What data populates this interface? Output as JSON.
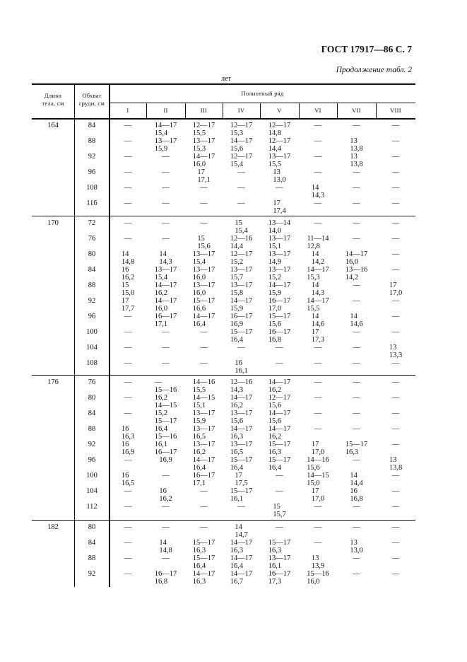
{
  "page_header": "ГОСТ 17917—86 С. 7",
  "continuation": "Продолжение табл. 2",
  "unit_note": "лет",
  "table": {
    "col_length": "Длина тела, см",
    "col_length_lines": [
      "Длина",
      "тела, см"
    ],
    "col_chest_lines": [
      "Обхват",
      "груди, см"
    ],
    "group_header": "Полнотный ряд",
    "roman": [
      "I",
      "II",
      "III",
      "IV",
      "V",
      "VI",
      "VII",
      "VIII"
    ],
    "groups": [
      {
        "length": "164",
        "rows": [
          {
            "chest": "84",
            "cells": [
              [
                "—"
              ],
              [
                "14—17",
                "15,4"
              ],
              [
                "12—17",
                "15,5"
              ],
              [
                "12—17",
                "15,3"
              ],
              [
                "12—17",
                "14,8"
              ],
              [
                "—"
              ],
              [
                "—"
              ],
              [
                "—"
              ]
            ]
          },
          {
            "chest": "88",
            "cells": [
              [
                "—"
              ],
              [
                "13—17",
                "15,9"
              ],
              [
                "13—17",
                "15,3"
              ],
              [
                "14—17",
                "15,6"
              ],
              [
                "12—17",
                "14,4"
              ],
              [
                "—"
              ],
              [
                "13",
                "13,8"
              ],
              [
                "—"
              ]
            ]
          },
          {
            "chest": "92",
            "cells": [
              [
                "—"
              ],
              [
                "—"
              ],
              [
                "14—17",
                "16,0"
              ],
              [
                "12—17",
                "15,4"
              ],
              [
                "13—17",
                "15,5"
              ],
              [
                "—"
              ],
              [
                "13",
                "13,8"
              ],
              [
                "—"
              ]
            ]
          },
          {
            "chest": "96",
            "cells": [
              [
                "—"
              ],
              [
                "—"
              ],
              [
                "17",
                "17,1"
              ],
              [
                "—"
              ],
              [
                "13",
                "13,0"
              ],
              [
                "—"
              ],
              [
                "—"
              ],
              [
                "—"
              ]
            ]
          },
          {
            "chest": "108",
            "cells": [
              [
                "—"
              ],
              [
                "—"
              ],
              [
                "—"
              ],
              [
                "—"
              ],
              [
                "—"
              ],
              [
                "14",
                "14,3"
              ],
              [
                "—"
              ],
              [
                "—"
              ]
            ]
          },
          {
            "chest": "116",
            "cells": [
              [
                "—"
              ],
              [
                "—"
              ],
              [
                "—"
              ],
              [
                "—"
              ],
              [
                "17",
                "17,4"
              ],
              [
                "—"
              ],
              [
                "—"
              ],
              [
                "—"
              ]
            ]
          }
        ]
      },
      {
        "length": "170",
        "rows": [
          {
            "chest": "72",
            "cells": [
              [
                "—"
              ],
              [
                "—"
              ],
              [
                "—"
              ],
              [
                "15",
                "15,4"
              ],
              [
                "13—14",
                "14,0"
              ],
              [
                "—"
              ],
              [
                "—"
              ],
              [
                "—"
              ]
            ]
          },
          {
            "chest": "76",
            "cells": [
              [
                "—"
              ],
              [
                "—"
              ],
              [
                "15",
                "15,6"
              ],
              [
                "12—16",
                "14,4"
              ],
              [
                "13—17",
                "15,1"
              ],
              [
                "11—14",
                "12,8"
              ],
              [
                "—"
              ],
              [
                "—"
              ]
            ]
          },
          {
            "chest": "80",
            "cells": [
              [
                "14",
                "14,8"
              ],
              [
                "14",
                "14,3"
              ],
              [
                "13—17",
                "15,4"
              ],
              [
                "12—17",
                "15,2"
              ],
              [
                "13—17",
                "14,9"
              ],
              [
                "14",
                "14,2"
              ],
              [
                "14—17",
                "16,0"
              ],
              [
                "—"
              ]
            ]
          },
          {
            "chest": "84",
            "cells": [
              [
                "16",
                "16,2"
              ],
              [
                "13—17",
                "15,4"
              ],
              [
                "13—17",
                "16,0"
              ],
              [
                "13—17",
                "15,7"
              ],
              [
                "13—17",
                "15,2"
              ],
              [
                "14—17",
                "15,3"
              ],
              [
                "13—16",
                "14,2"
              ],
              [
                "—"
              ]
            ]
          },
          {
            "chest": "88",
            "cells": [
              [
                "15",
                "15,0"
              ],
              [
                "14—17",
                "16,2"
              ],
              [
                "13—17",
                "16,0"
              ],
              [
                "13—17",
                "15,8"
              ],
              [
                "14—17",
                "15,9"
              ],
              [
                "14",
                "14,3"
              ],
              [
                "—"
              ],
              [
                "17",
                "17,0"
              ]
            ]
          },
          {
            "chest": "92",
            "cells": [
              [
                "17",
                "17,7"
              ],
              [
                "14—17",
                "16,0"
              ],
              [
                "15—17",
                "16,6"
              ],
              [
                "14—17",
                "15,9"
              ],
              [
                "16—17",
                "17,0"
              ],
              [
                "14—17",
                "15,5"
              ],
              [
                "—"
              ],
              [
                "—"
              ]
            ]
          },
          {
            "chest": "96",
            "cells": [
              [
                "—"
              ],
              [
                "16—17",
                "17,1"
              ],
              [
                "14—17",
                "16,4"
              ],
              [
                "16—17",
                "16,9"
              ],
              [
                "15—17",
                "15,6"
              ],
              [
                "14",
                "14,6"
              ],
              [
                "14",
                "14,6"
              ],
              [
                "—"
              ]
            ]
          },
          {
            "chest": "100",
            "cells": [
              [
                "—"
              ],
              [
                "—"
              ],
              [
                "—"
              ],
              [
                "15—17",
                "16,4"
              ],
              [
                "16—17",
                "16,8"
              ],
              [
                "17",
                "17,3"
              ],
              [
                "—"
              ],
              [
                "—"
              ]
            ]
          },
          {
            "chest": "104",
            "cells": [
              [
                "—"
              ],
              [
                "—"
              ],
              [
                "—"
              ],
              [
                "—"
              ],
              [
                "—"
              ],
              [
                "—"
              ],
              [
                "—"
              ],
              [
                "13",
                "13,3"
              ]
            ]
          },
          {
            "chest": "108",
            "cells": [
              [
                "—"
              ],
              [
                "—"
              ],
              [
                "—"
              ],
              [
                "16",
                "16,1"
              ],
              [
                "—"
              ],
              [
                "—"
              ],
              [
                "—"
              ],
              [
                "—"
              ]
            ]
          }
        ]
      },
      {
        "length": "176",
        "rows": [
          {
            "chest": "76",
            "cells": [
              [
                "—"
              ],
              [
                "—",
                "15—16"
              ],
              [
                "14—16",
                "15,5"
              ],
              [
                "12—16",
                "14,3"
              ],
              [
                "14—17",
                "16,2"
              ],
              [
                "—"
              ],
              [
                "—"
              ],
              [
                "—"
              ]
            ]
          },
          {
            "chest": "80",
            "cells": [
              [
                "—"
              ],
              [
                "16,2",
                "14—15"
              ],
              [
                "14—15",
                "15,1"
              ],
              [
                "14—17",
                "16,2"
              ],
              [
                "12—17",
                "15,6"
              ],
              [
                "—"
              ],
              [
                "—"
              ],
              [
                "—"
              ]
            ]
          },
          {
            "chest": "84",
            "cells": [
              [
                "—"
              ],
              [
                "15,2",
                "15—17"
              ],
              [
                "13—17",
                "15,9"
              ],
              [
                "13—17",
                "15,6"
              ],
              [
                "14—17",
                "15,6"
              ],
              [
                "—"
              ],
              [
                "—"
              ],
              [
                "—"
              ]
            ]
          },
          {
            "chest": "88",
            "cells": [
              [
                "16",
                "16,3"
              ],
              [
                "16,4",
                "15—16"
              ],
              [
                "13—17",
                "16,5"
              ],
              [
                "14—17",
                "16,3"
              ],
              [
                "14—17",
                "16,2"
              ],
              [
                "—"
              ],
              [
                "—"
              ],
              [
                "—"
              ]
            ]
          },
          {
            "chest": "92",
            "cells": [
              [
                "16",
                "16,9"
              ],
              [
                "16,1",
                "16—17"
              ],
              [
                "13—17",
                "16,2"
              ],
              [
                "13—17",
                "16,5"
              ],
              [
                "15—17",
                "16,3"
              ],
              [
                "17",
                "17,0"
              ],
              [
                "15—17",
                "16,3"
              ],
              [
                "—"
              ]
            ]
          },
          {
            "chest": "96",
            "cells": [
              [
                "—"
              ],
              [
                "16,9"
              ],
              [
                "14—17",
                "16,4"
              ],
              [
                "15—17",
                "16,4"
              ],
              [
                "15—17",
                "16,4"
              ],
              [
                "14—16",
                "15,6"
              ],
              [
                "—"
              ],
              [
                "13",
                "13,8"
              ]
            ]
          },
          {
            "chest": "100",
            "cells": [
              [
                "16",
                "16,5"
              ],
              [
                "—"
              ],
              [
                "16—17",
                "17,1"
              ],
              [
                "17",
                "17,5"
              ],
              [
                "—"
              ],
              [
                "14—15",
                "15,0"
              ],
              [
                "14",
                "14,4"
              ],
              [
                "—"
              ]
            ]
          },
          {
            "chest": "104",
            "cells": [
              [
                "—"
              ],
              [
                "16",
                "16,2"
              ],
              [
                "—"
              ],
              [
                "15—17",
                "16,1"
              ],
              [
                "—"
              ],
              [
                "17",
                "17,0"
              ],
              [
                "16",
                "16,8"
              ],
              [
                "—"
              ]
            ]
          },
          {
            "chest": "112",
            "cells": [
              [
                "—"
              ],
              [
                "—"
              ],
              [
                "—"
              ],
              [
                "—"
              ],
              [
                "15",
                "15,7"
              ],
              [
                "—"
              ],
              [
                "—"
              ],
              [
                "—"
              ]
            ]
          }
        ]
      },
      {
        "length": "182",
        "rows": [
          {
            "chest": "80",
            "cells": [
              [
                "—"
              ],
              [
                "—"
              ],
              [
                "—"
              ],
              [
                "14",
                "14,7"
              ],
              [
                "—"
              ],
              [
                "—"
              ],
              [
                "—"
              ],
              [
                "—"
              ]
            ]
          },
          {
            "chest": "84",
            "cells": [
              [
                "—"
              ],
              [
                "14",
                "14,8"
              ],
              [
                "15—17",
                "16,3"
              ],
              [
                "14—17",
                "16,3"
              ],
              [
                "15—17",
                "16,3"
              ],
              [
                "—"
              ],
              [
                "13",
                "13,0"
              ],
              [
                "—"
              ]
            ]
          },
          {
            "chest": "88",
            "cells": [
              [
                "—"
              ],
              [
                "—"
              ],
              [
                "15—17",
                "16,4"
              ],
              [
                "14—17",
                "16,4"
              ],
              [
                "13—17",
                "16,1"
              ],
              [
                "13",
                "13,9"
              ],
              [
                "—"
              ],
              [
                "—"
              ]
            ]
          },
          {
            "chest": "92",
            "cells": [
              [
                "—"
              ],
              [
                "16—17",
                "16,8"
              ],
              [
                "14—17",
                "16,3"
              ],
              [
                "14—17",
                "16,7"
              ],
              [
                "16—17",
                "17,3"
              ],
              [
                "15—16",
                "16,0"
              ],
              [
                "—"
              ],
              [
                "—"
              ]
            ]
          }
        ]
      }
    ]
  }
}
